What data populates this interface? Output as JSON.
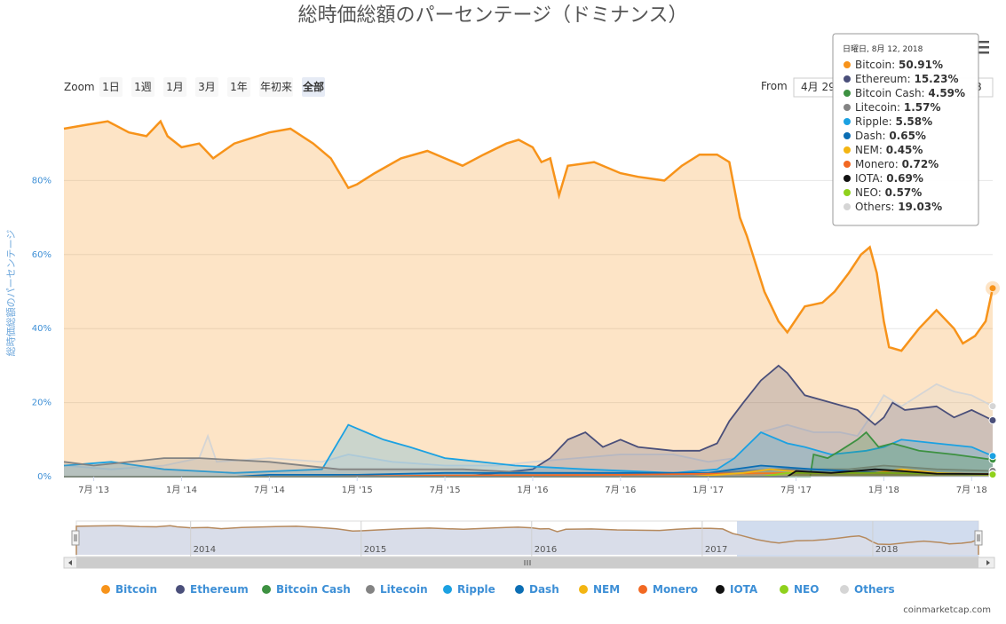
{
  "title": "総時価総額のパーセンテージ（ドミナンス）",
  "zoom": {
    "label": "Zoom",
    "buttons": [
      "1日",
      "1週",
      "1月",
      "3月",
      "1年",
      "年初来",
      "全部"
    ],
    "active": "全部"
  },
  "range": {
    "from_label": "From",
    "from_value": "4月 29",
    "to_value_partial": "8"
  },
  "credit": "coinmarketcap.com",
  "navigator_years": [
    "2014",
    "2015",
    "2016",
    "2017",
    "2018"
  ],
  "tooltip": {
    "header": "日曜日, 8月 12, 2018",
    "rows": [
      {
        "name": "Bitcoin",
        "value": "50.91%"
      },
      {
        "name": "Ethereum",
        "value": "15.23%"
      },
      {
        "name": "Bitcoin Cash",
        "value": "4.59%"
      },
      {
        "name": "Litecoin",
        "value": "1.57%"
      },
      {
        "name": "Ripple",
        "value": "5.58%"
      },
      {
        "name": "Dash",
        "value": "0.65%"
      },
      {
        "name": "NEM",
        "value": "0.45%"
      },
      {
        "name": "Monero",
        "value": "0.72%"
      },
      {
        "name": "IOTA",
        "value": "0.69%"
      },
      {
        "name": "NEO",
        "value": "0.57%"
      },
      {
        "name": "Others",
        "value": "19.03%"
      }
    ]
  },
  "chart_data": {
    "type": "area",
    "title": "総時価総額のパーセンテージ（ドミナンス）",
    "ylabel": "総時価総額のパーセンテージ",
    "ylim": [
      0,
      100
    ],
    "yticks": [
      "0%",
      "20%",
      "40%",
      "60%",
      "80%"
    ],
    "ytick_values": [
      0,
      20,
      40,
      60,
      80
    ],
    "xticks": [
      {
        "label": "7月 '13",
        "t": 2013.5
      },
      {
        "label": "1月 '14",
        "t": 2014.0
      },
      {
        "label": "7月 '14",
        "t": 2014.5
      },
      {
        "label": "1月 '15",
        "t": 2015.0
      },
      {
        "label": "7月 '15",
        "t": 2015.5
      },
      {
        "label": "1月 '16",
        "t": 2016.0
      },
      {
        "label": "7月 '16",
        "t": 2016.5
      },
      {
        "label": "1月 '17",
        "t": 2017.0
      },
      {
        "label": "7月 '17",
        "t": 2017.5
      },
      {
        "label": "1月 '18",
        "t": 2018.0
      },
      {
        "label": "7月 '18",
        "t": 2018.5
      }
    ],
    "xlim": [
      2013.33,
      2018.62
    ],
    "grid": true,
    "legend_position": "bottom",
    "series": [
      {
        "name": "Bitcoin",
        "color": "#f7931a",
        "points": [
          [
            2013.33,
            94
          ],
          [
            2013.45,
            95
          ],
          [
            2013.58,
            96
          ],
          [
            2013.7,
            93
          ],
          [
            2013.8,
            92
          ],
          [
            2013.88,
            96
          ],
          [
            2013.92,
            92
          ],
          [
            2014.0,
            89
          ],
          [
            2014.1,
            90
          ],
          [
            2014.18,
            86
          ],
          [
            2014.3,
            90
          ],
          [
            2014.5,
            93
          ],
          [
            2014.62,
            94
          ],
          [
            2014.75,
            90
          ],
          [
            2014.85,
            86
          ],
          [
            2014.95,
            78
          ],
          [
            2015.0,
            79
          ],
          [
            2015.1,
            82
          ],
          [
            2015.25,
            86
          ],
          [
            2015.4,
            88
          ],
          [
            2015.5,
            86
          ],
          [
            2015.6,
            84
          ],
          [
            2015.72,
            87
          ],
          [
            2015.85,
            90
          ],
          [
            2015.92,
            91
          ],
          [
            2016.0,
            89
          ],
          [
            2016.05,
            85
          ],
          [
            2016.1,
            86
          ],
          [
            2016.15,
            76
          ],
          [
            2016.2,
            84
          ],
          [
            2016.35,
            85
          ],
          [
            2016.5,
            82
          ],
          [
            2016.6,
            81
          ],
          [
            2016.75,
            80
          ],
          [
            2016.85,
            84
          ],
          [
            2016.95,
            87
          ],
          [
            2017.05,
            87
          ],
          [
            2017.12,
            85
          ],
          [
            2017.18,
            70
          ],
          [
            2017.22,
            65
          ],
          [
            2017.32,
            50
          ],
          [
            2017.4,
            42
          ],
          [
            2017.45,
            39
          ],
          [
            2017.55,
            46
          ],
          [
            2017.65,
            47
          ],
          [
            2017.72,
            50
          ],
          [
            2017.8,
            55
          ],
          [
            2017.87,
            60
          ],
          [
            2017.92,
            62
          ],
          [
            2017.96,
            55
          ],
          [
            2018.0,
            42
          ],
          [
            2018.03,
            35
          ],
          [
            2018.1,
            34
          ],
          [
            2018.2,
            40
          ],
          [
            2018.3,
            45
          ],
          [
            2018.4,
            40
          ],
          [
            2018.45,
            36
          ],
          [
            2018.52,
            38
          ],
          [
            2018.58,
            42
          ],
          [
            2018.62,
            50.91
          ]
        ]
      },
      {
        "name": "Ethereum",
        "color": "#4a4f7a",
        "points": [
          [
            2013.33,
            0
          ],
          [
            2015.6,
            0
          ],
          [
            2015.7,
            0.5
          ],
          [
            2016.0,
            2
          ],
          [
            2016.1,
            5
          ],
          [
            2016.2,
            10
          ],
          [
            2016.3,
            12
          ],
          [
            2016.4,
            8
          ],
          [
            2016.5,
            10
          ],
          [
            2016.6,
            8
          ],
          [
            2016.8,
            7
          ],
          [
            2016.95,
            7
          ],
          [
            2017.05,
            9
          ],
          [
            2017.12,
            15
          ],
          [
            2017.2,
            20
          ],
          [
            2017.3,
            26
          ],
          [
            2017.4,
            30
          ],
          [
            2017.45,
            28
          ],
          [
            2017.55,
            22
          ],
          [
            2017.7,
            20
          ],
          [
            2017.85,
            18
          ],
          [
            2017.95,
            14
          ],
          [
            2018.0,
            16
          ],
          [
            2018.05,
            20
          ],
          [
            2018.12,
            18
          ],
          [
            2018.3,
            19
          ],
          [
            2018.4,
            16
          ],
          [
            2018.5,
            18
          ],
          [
            2018.62,
            15.23
          ]
        ]
      },
      {
        "name": "Bitcoin Cash",
        "color": "#3d9141",
        "points": [
          [
            2013.33,
            0
          ],
          [
            2017.58,
            0
          ],
          [
            2017.6,
            6
          ],
          [
            2017.68,
            5
          ],
          [
            2017.75,
            7
          ],
          [
            2017.85,
            10
          ],
          [
            2017.9,
            12
          ],
          [
            2017.97,
            8
          ],
          [
            2018.05,
            9
          ],
          [
            2018.2,
            7
          ],
          [
            2018.4,
            6
          ],
          [
            2018.62,
            4.59
          ]
        ]
      },
      {
        "name": "Litecoin",
        "color": "#838383",
        "points": [
          [
            2013.33,
            4
          ],
          [
            2013.5,
            3
          ],
          [
            2013.9,
            5
          ],
          [
            2014.1,
            5
          ],
          [
            2014.5,
            4
          ],
          [
            2014.9,
            2
          ],
          [
            2015.3,
            2
          ],
          [
            2015.6,
            2
          ],
          [
            2016.0,
            1
          ],
          [
            2016.5,
            1
          ],
          [
            2017.0,
            1
          ],
          [
            2017.4,
            2
          ],
          [
            2017.8,
            2
          ],
          [
            2018.0,
            3
          ],
          [
            2018.3,
            2
          ],
          [
            2018.62,
            1.57
          ]
        ]
      },
      {
        "name": "Ripple",
        "color": "#1ba1e2",
        "points": [
          [
            2013.33,
            3
          ],
          [
            2013.6,
            4
          ],
          [
            2013.9,
            2
          ],
          [
            2014.3,
            1
          ],
          [
            2014.8,
            2
          ],
          [
            2014.95,
            14
          ],
          [
            2015.05,
            12
          ],
          [
            2015.15,
            10
          ],
          [
            2015.3,
            8
          ],
          [
            2015.5,
            5
          ],
          [
            2015.9,
            3
          ],
          [
            2016.3,
            2
          ],
          [
            2016.8,
            1
          ],
          [
            2017.05,
            2
          ],
          [
            2017.15,
            5
          ],
          [
            2017.3,
            12
          ],
          [
            2017.45,
            9
          ],
          [
            2017.55,
            8
          ],
          [
            2017.7,
            6
          ],
          [
            2017.9,
            7
          ],
          [
            2018.0,
            8
          ],
          [
            2018.1,
            10
          ],
          [
            2018.3,
            9
          ],
          [
            2018.5,
            8
          ],
          [
            2018.62,
            5.58
          ]
        ]
      },
      {
        "name": "Dash",
        "color": "#0b6eb4",
        "points": [
          [
            2013.33,
            0
          ],
          [
            2014.3,
            0
          ],
          [
            2014.5,
            0.5
          ],
          [
            2015.0,
            0.5
          ],
          [
            2015.5,
            1
          ],
          [
            2016.0,
            1
          ],
          [
            2016.5,
            1
          ],
          [
            2017.0,
            1
          ],
          [
            2017.3,
            3
          ],
          [
            2017.6,
            2
          ],
          [
            2018.0,
            1
          ],
          [
            2018.62,
            0.65
          ]
        ]
      },
      {
        "name": "NEM",
        "color": "#f3b512",
        "points": [
          [
            2013.33,
            0
          ],
          [
            2016.9,
            0
          ],
          [
            2017.2,
            1
          ],
          [
            2017.35,
            2
          ],
          [
            2017.6,
            1
          ],
          [
            2017.95,
            1
          ],
          [
            2018.1,
            2
          ],
          [
            2018.3,
            1
          ],
          [
            2018.62,
            0.45
          ]
        ]
      },
      {
        "name": "Monero",
        "color": "#f26822",
        "points": [
          [
            2013.33,
            0
          ],
          [
            2014.8,
            0
          ],
          [
            2015.5,
            0.3
          ],
          [
            2016.5,
            0.5
          ],
          [
            2017.0,
            0.8
          ],
          [
            2017.5,
            1
          ],
          [
            2018.0,
            1
          ],
          [
            2018.62,
            0.72
          ]
        ]
      },
      {
        "name": "IOTA",
        "color": "#111111",
        "points": [
          [
            2013.33,
            0
          ],
          [
            2017.45,
            0
          ],
          [
            2017.5,
            1.5
          ],
          [
            2017.7,
            1
          ],
          [
            2017.95,
            2
          ],
          [
            2018.1,
            1.5
          ],
          [
            2018.3,
            0.8
          ],
          [
            2018.62,
            0.69
          ]
        ]
      },
      {
        "name": "NEO",
        "color": "#8fd11c",
        "points": [
          [
            2013.33,
            0
          ],
          [
            2017.3,
            0
          ],
          [
            2017.45,
            1
          ],
          [
            2017.7,
            1
          ],
          [
            2018.0,
            1
          ],
          [
            2018.3,
            0.8
          ],
          [
            2018.62,
            0.57
          ]
        ]
      },
      {
        "name": "Others",
        "color": "#d5d5d5",
        "points": [
          [
            2013.33,
            3
          ],
          [
            2013.6,
            2
          ],
          [
            2013.9,
            3
          ],
          [
            2014.1,
            5
          ],
          [
            2014.15,
            11
          ],
          [
            2014.2,
            4
          ],
          [
            2014.5,
            5
          ],
          [
            2014.8,
            4
          ],
          [
            2014.95,
            6
          ],
          [
            2015.2,
            4
          ],
          [
            2015.5,
            3
          ],
          [
            2015.8,
            3
          ],
          [
            2016.0,
            4
          ],
          [
            2016.5,
            6
          ],
          [
            2016.8,
            6
          ],
          [
            2017.0,
            4
          ],
          [
            2017.15,
            5
          ],
          [
            2017.3,
            12
          ],
          [
            2017.45,
            14
          ],
          [
            2017.6,
            12
          ],
          [
            2017.75,
            12
          ],
          [
            2017.85,
            11
          ],
          [
            2017.95,
            18
          ],
          [
            2018.0,
            22
          ],
          [
            2018.1,
            19
          ],
          [
            2018.2,
            22
          ],
          [
            2018.3,
            25
          ],
          [
            2018.4,
            23
          ],
          [
            2018.5,
            22
          ],
          [
            2018.62,
            19.03
          ]
        ]
      }
    ]
  }
}
